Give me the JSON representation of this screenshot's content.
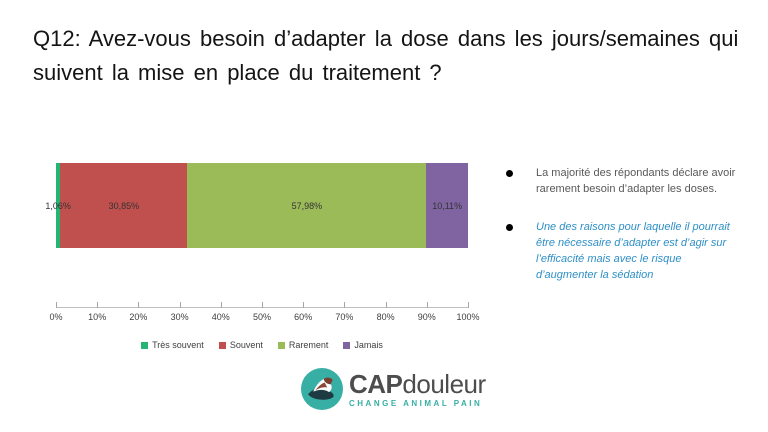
{
  "slide": {
    "title": "Q12: Avez-vous besoin d’adapter la dose dans les jours/semaines qui suivent la mise en place du traitement ?"
  },
  "chart_data": {
    "type": "bar",
    "orientation": "horizontal_stacked",
    "series": [
      {
        "name": "Très souvent",
        "value": 1.06,
        "label": "1,06%",
        "color": "#24B572",
        "label_outside": true
      },
      {
        "name": "Souvent",
        "value": 30.85,
        "label": "30,85%",
        "color": "#C0504D",
        "label_outside": false
      },
      {
        "name": "Rarement",
        "value": 57.98,
        "label": "57,98%",
        "color": "#9BBB59",
        "label_outside": false
      },
      {
        "name": "Jamais",
        "value": 10.11,
        "label": "10,11%",
        "color": "#8064A2",
        "label_outside": false
      }
    ],
    "x_ticks": [
      "0%",
      "10%",
      "20%",
      "30%",
      "40%",
      "50%",
      "60%",
      "70%",
      "80%",
      "90%",
      "100%"
    ],
    "xlim": [
      0,
      100
    ],
    "grid": false,
    "legend_position": "bottom",
    "axis_line_color": "#BFBFBF"
  },
  "notes": {
    "bullets": [
      {
        "text": "La majorité des répondants déclare avoir rarement besoin d’adapter les doses.",
        "color": "#595959"
      },
      {
        "text": "Une des raisons pour laquelle il pourrait être nécessaire d’adapter est d’agir sur l’efficacité mais avec le risque d’augmenter la sédation",
        "color": "#2E8FC5"
      }
    ]
  },
  "logo": {
    "brand_bold": "CAP",
    "brand_rest": "douleur",
    "tagline": "CHANGE ANIMAL PAIN",
    "teal": "#38AFA5"
  }
}
